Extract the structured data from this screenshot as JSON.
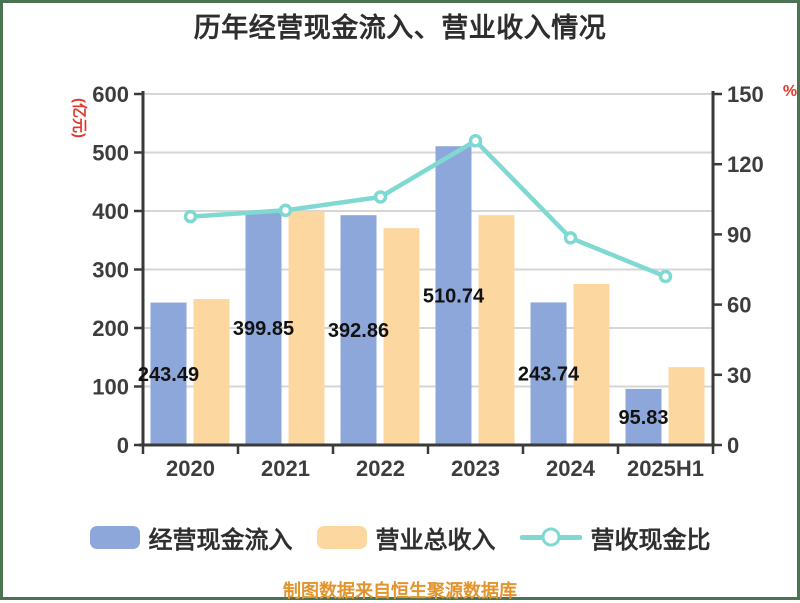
{
  "page": {
    "background": "#ffffff",
    "border_color": "#4a7352"
  },
  "title": "历年经营现金流入、营业收入情况",
  "footer": "制图数据来自恒生聚源数据库",
  "legend": {
    "cash_inflow_label": "经营现金流入",
    "revenue_label": "营业总收入",
    "ratio_label": "营收现金比"
  },
  "colors": {
    "cash_inflow_bar": "#8ea7da",
    "revenue_bar": "#fcd8a0",
    "ratio_line": "#7fd8d2",
    "marker_fill": "#ffffff",
    "grid": "#d6d6d6",
    "axis": "#3a3a3a",
    "tick_text": "#3d3d3d",
    "bar_label_text": "#121212",
    "unit_text": "#e2382c",
    "footer_text": "#e2952e",
    "title_text": "#2e2e2e"
  },
  "chart_data": {
    "type": "bar",
    "subtype": "dual-axis bar+line combo",
    "title": "历年经营现金流入、营业收入情况",
    "categories": [
      "2020",
      "2021",
      "2022",
      "2023",
      "2024",
      "2025H1"
    ],
    "series": [
      {
        "name": "经营现金流入",
        "type": "bar",
        "axis": "left",
        "color": "#8ea7da",
        "values": [
          243.49,
          399.85,
          392.86,
          510.74,
          243.74,
          95.83
        ],
        "labels": [
          "243.49",
          "399.85",
          "392.86",
          "510.74",
          "243.74",
          "95.83"
        ]
      },
      {
        "name": "营业总收入",
        "type": "bar",
        "axis": "left",
        "color": "#fcd8a0",
        "values": [
          249.5,
          398.7,
          370.6,
          392.9,
          275.4,
          133.1
        ],
        "note": "estimated from bar heights, no data labels shown"
      },
      {
        "name": "营收现金比",
        "type": "line",
        "axis": "right",
        "color": "#7fd8d2",
        "values": [
          97.6,
          100.3,
          106.0,
          130.0,
          88.5,
          72.0
        ],
        "note": "estimated from marker positions, no data labels shown"
      }
    ],
    "left_axis": {
      "unit": "(亿元)",
      "min": 0,
      "max": 600,
      "step": 100,
      "tick_labels": [
        "0",
        "100",
        "200",
        "300",
        "400",
        "500",
        "600"
      ]
    },
    "right_axis": {
      "unit": "%",
      "min": 0,
      "max": 150,
      "step": 30,
      "tick_labels": [
        "0",
        "30",
        "60",
        "90",
        "120",
        "150"
      ]
    },
    "grid": true,
    "legend_position": "bottom"
  }
}
